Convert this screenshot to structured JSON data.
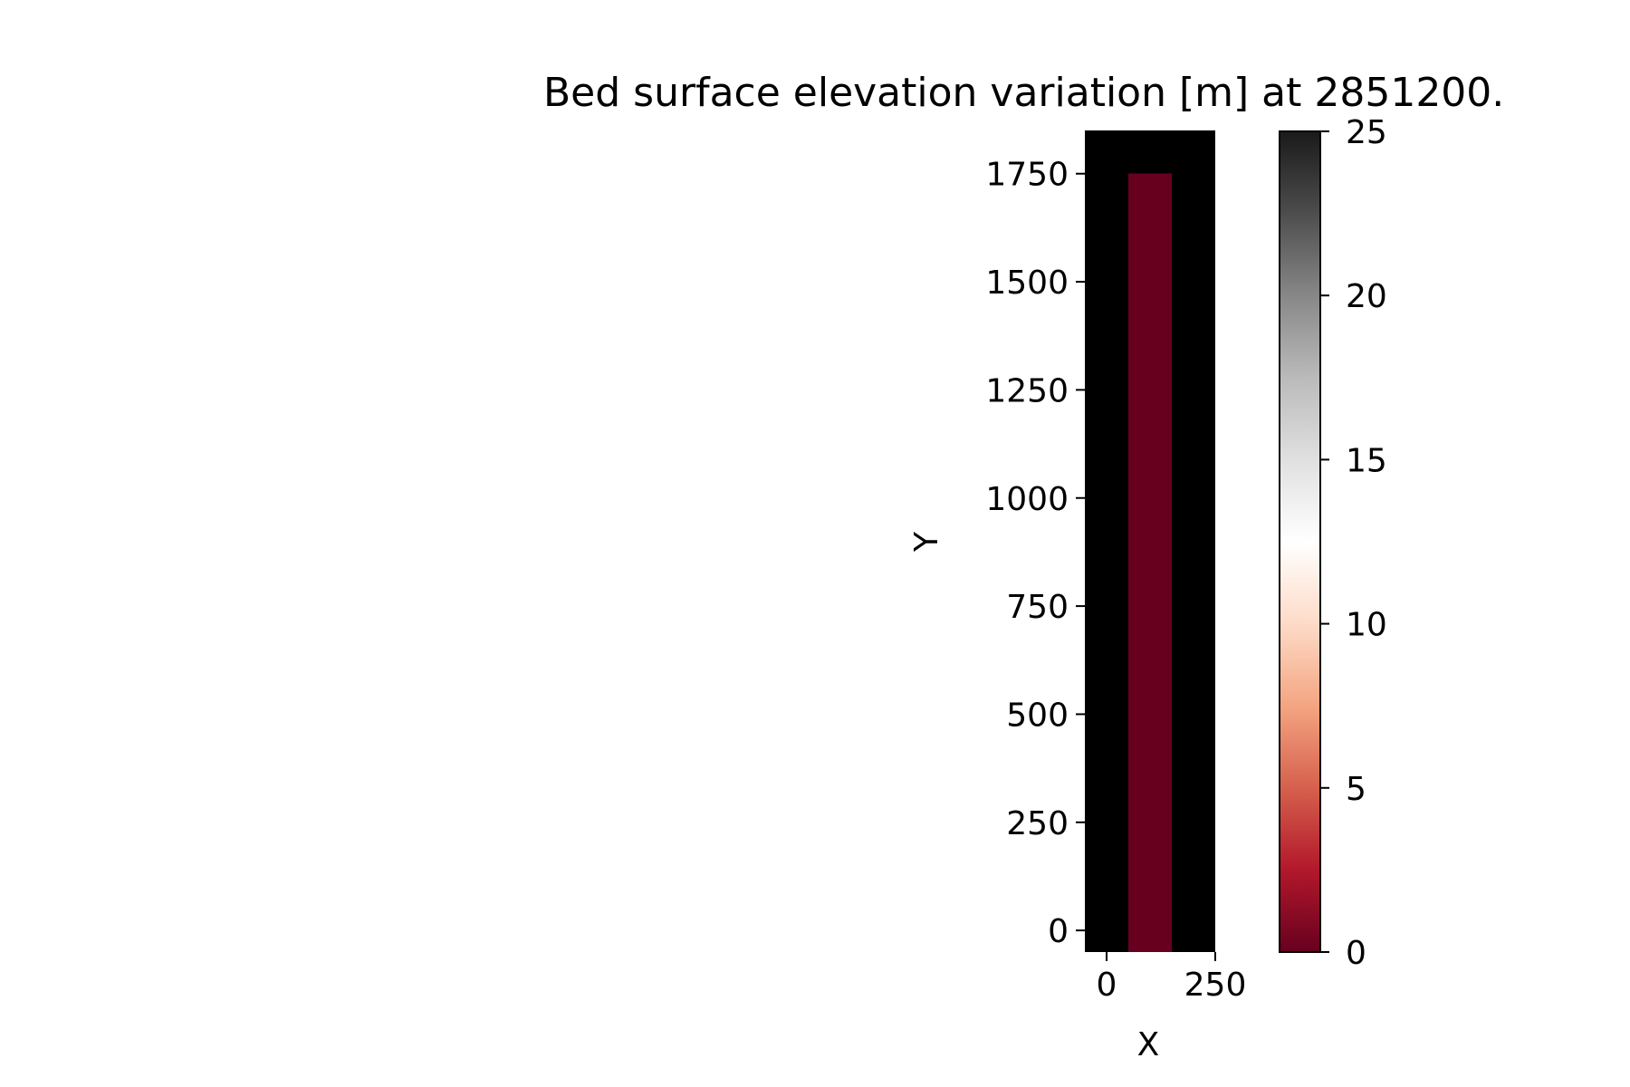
{
  "chart_data": {
    "type": "heatmap",
    "title": "Bed surface elevation variation [m] at 2851200.",
    "xlabel": "X",
    "ylabel": "Y",
    "xlim": [
      -50,
      250
    ],
    "ylim": [
      -50,
      1850
    ],
    "x_ticks": [
      0,
      250
    ],
    "y_ticks": [
      0,
      250,
      500,
      750,
      1000,
      1250,
      1500,
      1750
    ],
    "grid": false,
    "cells": [
      {
        "x": [
          -50,
          50
        ],
        "y": [
          -50,
          1850
        ],
        "value": 25
      },
      {
        "x": [
          150,
          250
        ],
        "y": [
          -50,
          1850
        ],
        "value": 25
      },
      {
        "x": [
          50,
          150
        ],
        "y": [
          1750,
          1850
        ],
        "value": 25
      },
      {
        "x": [
          50,
          150
        ],
        "y": [
          -50,
          1750
        ],
        "value": 0
      }
    ],
    "colorbar": {
      "colormap": "RdGy",
      "range": [
        0,
        25
      ],
      "ticks": [
        0,
        5,
        10,
        15,
        20,
        25
      ],
      "colors": [
        "#67001f",
        "#b2182b",
        "#d6604d",
        "#f4a582",
        "#fddbc7",
        "#ffffff",
        "#e0e0e0",
        "#bababa",
        "#878787",
        "#4d4d4d",
        "#1a1a1a"
      ]
    }
  }
}
